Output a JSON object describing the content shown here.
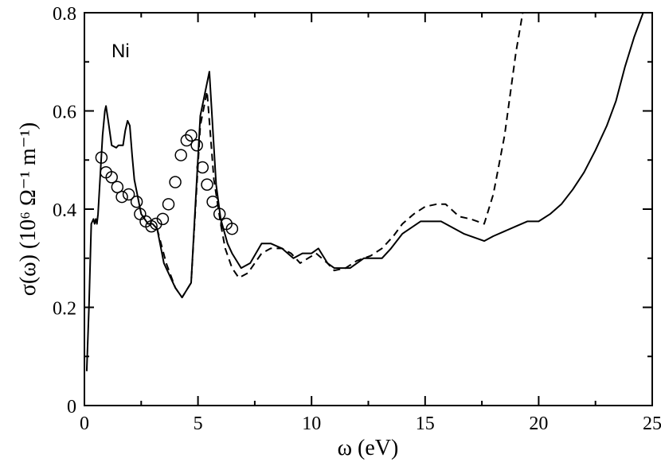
{
  "chart_data": {
    "type": "line",
    "xlabel": "ω (eV)",
    "ylabel": "σ(ω) (10⁶ Ω⁻¹ m⁻¹)",
    "annotation": "Ni",
    "xlim": [
      0,
      25
    ],
    "ylim": [
      0,
      0.8
    ],
    "xticks": [
      0,
      5,
      10,
      15,
      20,
      25
    ],
    "yticks": [
      0,
      0.2,
      0.4,
      0.6,
      0.8
    ],
    "xtick_labels": [
      "0",
      "5",
      "10",
      "15",
      "20",
      "25"
    ],
    "ytick_labels": [
      "0",
      "0.2",
      "0.4",
      "0.6",
      "0.8"
    ],
    "grid": false,
    "series": [
      {
        "style": "solid",
        "points": [
          [
            0.1,
            0.07
          ],
          [
            0.2,
            0.2
          ],
          [
            0.3,
            0.37
          ],
          [
            0.4,
            0.38
          ],
          [
            0.45,
            0.37
          ],
          [
            0.5,
            0.38
          ],
          [
            0.55,
            0.37
          ],
          [
            0.6,
            0.39
          ],
          [
            0.8,
            0.55
          ],
          [
            0.9,
            0.6
          ],
          [
            0.95,
            0.61
          ],
          [
            1.05,
            0.58
          ],
          [
            1.2,
            0.53
          ],
          [
            1.4,
            0.525
          ],
          [
            1.5,
            0.53
          ],
          [
            1.7,
            0.53
          ],
          [
            1.8,
            0.56
          ],
          [
            1.9,
            0.58
          ],
          [
            2.0,
            0.57
          ],
          [
            2.1,
            0.51
          ],
          [
            2.2,
            0.46
          ],
          [
            2.5,
            0.39
          ],
          [
            2.8,
            0.37
          ],
          [
            3.0,
            0.37
          ],
          [
            3.2,
            0.36
          ],
          [
            3.5,
            0.29
          ],
          [
            4.0,
            0.24
          ],
          [
            4.3,
            0.22
          ],
          [
            4.7,
            0.25
          ],
          [
            5.1,
            0.59
          ],
          [
            5.5,
            0.68
          ],
          [
            5.8,
            0.45
          ],
          [
            6.0,
            0.38
          ],
          [
            6.3,
            0.33
          ],
          [
            6.5,
            0.31
          ],
          [
            6.9,
            0.28
          ],
          [
            7.3,
            0.29
          ],
          [
            7.8,
            0.33
          ],
          [
            8.2,
            0.33
          ],
          [
            8.7,
            0.32
          ],
          [
            9.2,
            0.3
          ],
          [
            9.6,
            0.31
          ],
          [
            10.0,
            0.31
          ],
          [
            10.3,
            0.32
          ],
          [
            10.7,
            0.29
          ],
          [
            11.0,
            0.28
          ],
          [
            11.7,
            0.28
          ],
          [
            12.3,
            0.3
          ],
          [
            13.1,
            0.3
          ],
          [
            13.5,
            0.32
          ],
          [
            14.0,
            0.35
          ],
          [
            14.8,
            0.375
          ],
          [
            15.7,
            0.375
          ],
          [
            16.7,
            0.35
          ],
          [
            17.6,
            0.335
          ],
          [
            18.0,
            0.345
          ],
          [
            18.5,
            0.355
          ],
          [
            19.0,
            0.365
          ],
          [
            19.5,
            0.375
          ],
          [
            20.0,
            0.375
          ],
          [
            20.5,
            0.39
          ],
          [
            21.0,
            0.41
          ],
          [
            21.5,
            0.44
          ],
          [
            22.0,
            0.475
          ],
          [
            22.5,
            0.52
          ],
          [
            23.0,
            0.57
          ],
          [
            23.4,
            0.62
          ],
          [
            23.8,
            0.69
          ],
          [
            24.2,
            0.75
          ],
          [
            24.6,
            0.8
          ]
        ]
      },
      {
        "style": "dashed",
        "points": [
          [
            3.2,
            0.36
          ],
          [
            3.6,
            0.29
          ],
          [
            4.0,
            0.24
          ],
          [
            4.3,
            0.22
          ],
          [
            4.7,
            0.25
          ],
          [
            5.1,
            0.57
          ],
          [
            5.4,
            0.64
          ],
          [
            5.7,
            0.46
          ],
          [
            6.0,
            0.37
          ],
          [
            6.2,
            0.32
          ],
          [
            6.5,
            0.28
          ],
          [
            6.8,
            0.26
          ],
          [
            7.2,
            0.27
          ],
          [
            7.8,
            0.31
          ],
          [
            8.2,
            0.32
          ],
          [
            8.7,
            0.32
          ],
          [
            9.1,
            0.31
          ],
          [
            9.5,
            0.29
          ],
          [
            10.2,
            0.31
          ],
          [
            10.7,
            0.29
          ],
          [
            11.0,
            0.275
          ],
          [
            11.5,
            0.28
          ],
          [
            12.0,
            0.295
          ],
          [
            12.6,
            0.305
          ],
          [
            13.1,
            0.32
          ],
          [
            13.6,
            0.345
          ],
          [
            14.0,
            0.37
          ],
          [
            14.5,
            0.39
          ],
          [
            15.0,
            0.405
          ],
          [
            15.5,
            0.41
          ],
          [
            15.9,
            0.41
          ],
          [
            16.5,
            0.385
          ],
          [
            17.0,
            0.38
          ],
          [
            17.6,
            0.37
          ],
          [
            18.0,
            0.43
          ],
          [
            18.5,
            0.55
          ],
          [
            19.0,
            0.72
          ],
          [
            19.3,
            0.8
          ]
        ]
      },
      {
        "style": "markers",
        "marker": "open-circle",
        "points": [
          [
            0.75,
            0.505
          ],
          [
            0.95,
            0.475
          ],
          [
            1.2,
            0.465
          ],
          [
            1.45,
            0.445
          ],
          [
            1.65,
            0.425
          ],
          [
            1.95,
            0.43
          ],
          [
            2.3,
            0.415
          ],
          [
            2.45,
            0.39
          ],
          [
            2.7,
            0.375
          ],
          [
            2.95,
            0.365
          ],
          [
            3.15,
            0.37
          ],
          [
            3.45,
            0.38
          ],
          [
            3.7,
            0.41
          ],
          [
            4.0,
            0.455
          ],
          [
            4.25,
            0.51
          ],
          [
            4.5,
            0.54
          ],
          [
            4.7,
            0.55
          ],
          [
            4.95,
            0.53
          ],
          [
            5.2,
            0.485
          ],
          [
            5.4,
            0.45
          ],
          [
            5.65,
            0.415
          ],
          [
            5.95,
            0.39
          ],
          [
            6.25,
            0.37
          ],
          [
            6.5,
            0.36
          ]
        ]
      }
    ]
  }
}
